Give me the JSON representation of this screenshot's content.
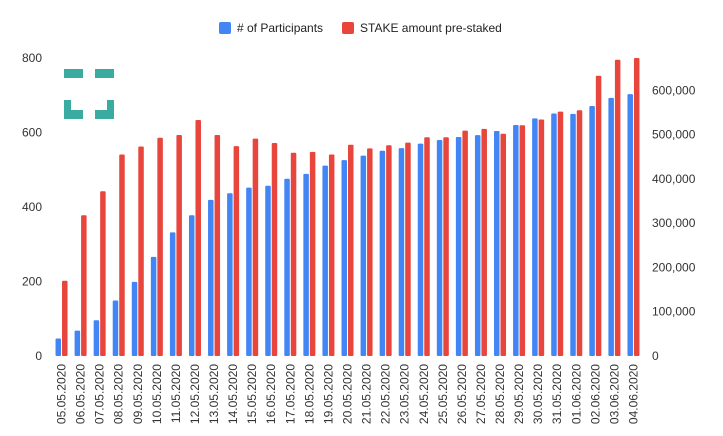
{
  "chart_data": {
    "type": "bar",
    "categories": [
      "05.05.2020",
      "06.05.2020",
      "07.05.2020",
      "08.05.2020",
      "09.05.2020",
      "10.05.2020",
      "11.05.2020",
      "12.05.2020",
      "13.05.2020",
      "14.05.2020",
      "15.05.2020",
      "16.05.2020",
      "17.05.2020",
      "18.05.2020",
      "19.05.2020",
      "20.05.2020",
      "21.05.2020",
      "22.05.2020",
      "23.05.2020",
      "24.05.2020",
      "25.05.2020",
      "26.05.2020",
      "27.05.2020",
      "28.05.2020",
      "29.05.2020",
      "30.05.2020",
      "31.05.2020",
      "01.06.2020",
      "02.06.2020",
      "03.06.2020",
      "04.06.2020"
    ],
    "series": [
      {
        "name": "# of Participants",
        "axis": "left",
        "color": "#4285f4",
        "values": [
          47,
          68,
          96,
          149,
          199,
          266,
          332,
          378,
          419,
          437,
          452,
          457,
          476,
          489,
          511,
          526,
          538,
          551,
          558,
          570,
          580,
          588,
          593,
          604,
          620,
          638,
          651,
          650,
          671,
          693,
          703
        ]
      },
      {
        "name": "STAKE amount pre-staked",
        "axis": "right",
        "color": "#e8453c",
        "values": [
          170000,
          318000,
          372000,
          455000,
          473000,
          493000,
          499000,
          533000,
          499000,
          474000,
          491000,
          481000,
          459000,
          461000,
          455000,
          477000,
          469000,
          476000,
          482000,
          494000,
          494000,
          509000,
          513000,
          502000,
          521000,
          534000,
          552000,
          555000,
          633000,
          669000,
          673000
        ]
      }
    ],
    "y_left": {
      "ylim": [
        0,
        800
      ],
      "ticks": [
        "0",
        "200",
        "400",
        "600",
        "800"
      ]
    },
    "y_right": {
      "ylim": [
        0,
        673000
      ],
      "ticks": [
        "0",
        "100,000",
        "200,000",
        "300,000",
        "400,000",
        "500,000",
        "600,000"
      ],
      "tick_values": [
        0,
        100000,
        200000,
        300000,
        400000,
        500000,
        600000
      ]
    },
    "legend_position": "top-center",
    "grid": false
  },
  "logo": {
    "name": "logo",
    "color": "#3aaba0"
  }
}
